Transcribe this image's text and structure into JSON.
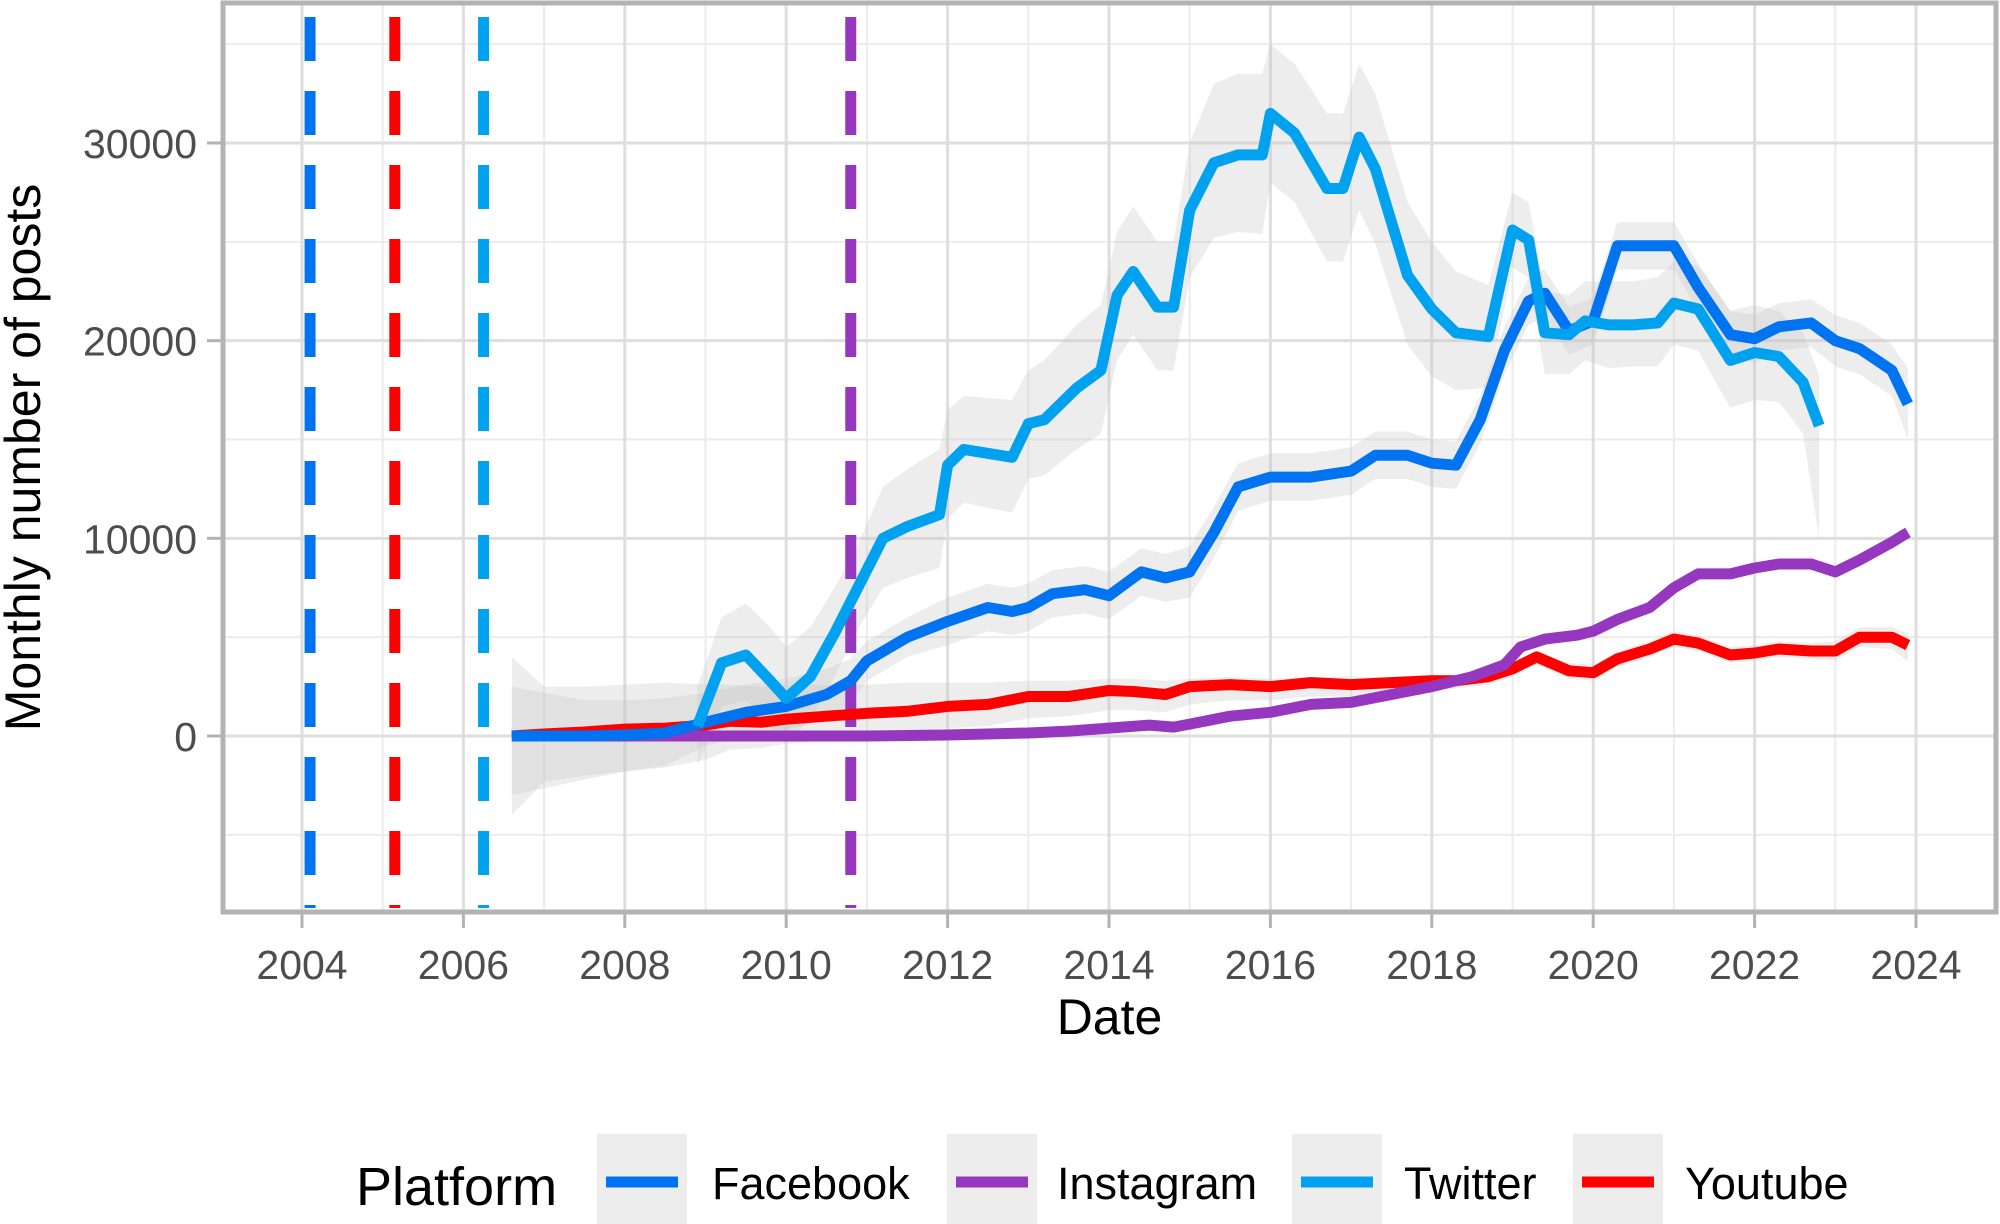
{
  "chart_data": {
    "type": "line",
    "title": "",
    "xlabel": "Date",
    "ylabel": "Monthly number of posts",
    "xlim": [
      2003.0,
      2025.0
    ],
    "ylim": [
      -9000,
      37000
    ],
    "x_ticks": [
      2004,
      2006,
      2008,
      2010,
      2012,
      2014,
      2016,
      2018,
      2020,
      2022,
      2024
    ],
    "x_tick_labels": [
      "2004",
      "2006",
      "2008",
      "2010",
      "2012",
      "2014",
      "2016",
      "2018",
      "2020",
      "2022",
      "2024"
    ],
    "y_ticks": [
      0,
      10000,
      20000,
      30000
    ],
    "y_tick_labels": [
      "0",
      "10000",
      "20000",
      "30000"
    ],
    "y_minor_gridlines": [
      -5000,
      5000,
      15000,
      25000,
      35000
    ],
    "x_minor_gridlines": [
      2005,
      2007,
      2009,
      2011,
      2013,
      2015,
      2017,
      2019,
      2021,
      2023
    ],
    "grid": true,
    "legend": {
      "title": "Platform",
      "position": "bottom",
      "entries": [
        {
          "label": "Facebook",
          "color": "#0073f0"
        },
        {
          "label": "Instagram",
          "color": "#9538bf"
        },
        {
          "label": "Twitter",
          "color": "#00a2f0"
        },
        {
          "label": "Youtube",
          "color": "#ff0000"
        }
      ]
    },
    "launch_lines": [
      {
        "platform": "Facebook",
        "x": 2004.1,
        "color": "#0073f0",
        "style": "dashed"
      },
      {
        "platform": "Youtube",
        "x": 2005.15,
        "color": "#ff0000",
        "style": "dashed"
      },
      {
        "platform": "Twitter",
        "x": 2006.25,
        "color": "#00a2f0",
        "style": "dashed"
      },
      {
        "platform": "Instagram",
        "x": 2010.8,
        "color": "#9538bf",
        "style": "dashed"
      }
    ],
    "series": [
      {
        "name": "Youtube",
        "color": "#ff0000",
        "x": [
          2006.6,
          2007.0,
          2007.5,
          2008.0,
          2008.5,
          2009.0,
          2009.3,
          2009.7,
          2010.0,
          2010.5,
          2011.0,
          2011.5,
          2012.0,
          2012.5,
          2013.0,
          2013.5,
          2014.0,
          2014.3,
          2014.7,
          2015.0,
          2015.5,
          2016.0,
          2016.5,
          2017.0,
          2017.5,
          2018.0,
          2018.3,
          2018.7,
          2019.0,
          2019.3,
          2019.7,
          2020.0,
          2020.3,
          2020.7,
          2021.0,
          2021.3,
          2021.7,
          2022.0,
          2022.3,
          2022.7,
          2023.0,
          2023.3,
          2023.7,
          2023.9
        ],
        "values": [
          0,
          100,
          200,
          350,
          400,
          550,
          750,
          700,
          850,
          1000,
          1150,
          1250,
          1500,
          1600,
          2000,
          2000,
          2300,
          2250,
          2100,
          2500,
          2600,
          2500,
          2700,
          2600,
          2700,
          2800,
          2800,
          3000,
          3400,
          4000,
          3300,
          3200,
          3900,
          4400,
          4900,
          4700,
          4100,
          4200,
          4400,
          4300,
          4300,
          5000,
          5000,
          4600
        ],
        "band_upper": [
          4000,
          2500,
          2500,
          2600,
          2700,
          2600,
          2600,
          2500,
          2600,
          2600,
          2600,
          2700,
          2700,
          2700,
          2800,
          2800,
          2900,
          2900,
          2800,
          2900,
          3000,
          2900,
          3000,
          3000,
          3000,
          3100,
          3100,
          3300,
          3700,
          4300,
          3700,
          3600,
          4300,
          4800,
          5300,
          5100,
          4500,
          4600,
          4800,
          4700,
          4800,
          5500,
          5500,
          5200
        ],
        "band_lower": [
          -4000,
          -2300,
          -2000,
          -1800,
          -1600,
          -1200,
          -700,
          -600,
          -400,
          -200,
          0,
          100,
          400,
          500,
          900,
          1000,
          1300,
          1300,
          1200,
          1600,
          1800,
          1800,
          2000,
          2000,
          2100,
          2300,
          2400,
          2600,
          3000,
          3600,
          2900,
          2800,
          3500,
          4000,
          4500,
          4300,
          3700,
          3800,
          4000,
          3900,
          3800,
          4500,
          4400,
          3800
        ]
      },
      {
        "name": "Instagram",
        "color": "#9538bf",
        "x": [
          2006.6,
          2008.0,
          2009.0,
          2010.0,
          2011.0,
          2012.0,
          2013.0,
          2013.5,
          2014.0,
          2014.5,
          2014.8,
          2015.0,
          2015.5,
          2016.0,
          2016.5,
          2017.0,
          2017.5,
          2018.0,
          2018.5,
          2018.9,
          2019.1,
          2019.4,
          2019.8,
          2020.0,
          2020.3,
          2020.7,
          2021.0,
          2021.3,
          2021.7,
          2022.0,
          2022.3,
          2022.7,
          2023.0,
          2023.3,
          2023.7,
          2023.9
        ],
        "values": [
          0,
          0,
          0,
          0,
          0,
          50,
          150,
          250,
          400,
          550,
          450,
          600,
          1000,
          1200,
          1600,
          1700,
          2100,
          2500,
          3000,
          3600,
          4500,
          4900,
          5100,
          5300,
          5900,
          6500,
          7500,
          8200,
          8200,
          8500,
          8700,
          8700,
          8300,
          8900,
          9800,
          10300
        ],
        "band_upper": [
          300,
          200,
          200,
          200,
          200,
          250,
          350,
          450,
          600,
          750,
          650,
          800,
          1200,
          1400,
          1800,
          1900,
          2300,
          2700,
          3200,
          3800,
          4700,
          5100,
          5300,
          5500,
          6100,
          6700,
          7700,
          8400,
          8400,
          8700,
          8900,
          8900,
          8500,
          9100,
          10000,
          10600
        ],
        "band_lower": [
          -300,
          -200,
          -200,
          -200,
          -200,
          -150,
          -50,
          50,
          200,
          350,
          250,
          400,
          800,
          1000,
          1400,
          1500,
          1900,
          2300,
          2800,
          3400,
          4300,
          4700,
          4900,
          5100,
          5700,
          6300,
          7300,
          8000,
          8000,
          8300,
          8500,
          8500,
          8100,
          8700,
          9600,
          10000
        ]
      },
      {
        "name": "Facebook",
        "color": "#0073f0",
        "x": [
          2006.6,
          2007.5,
          2008.0,
          2008.5,
          2009.0,
          2009.5,
          2010.0,
          2010.5,
          2010.8,
          2011.0,
          2011.5,
          2012.0,
          2012.5,
          2012.8,
          2013.0,
          2013.3,
          2013.7,
          2014.0,
          2014.4,
          2014.7,
          2015.0,
          2015.3,
          2015.6,
          2016.0,
          2016.5,
          2017.0,
          2017.3,
          2017.7,
          2018.0,
          2018.3,
          2018.6,
          2018.9,
          2019.2,
          2019.4,
          2019.7,
          2020.0,
          2020.3,
          2020.7,
          2021.0,
          2021.3,
          2021.7,
          2022.0,
          2022.3,
          2022.7,
          2023.0,
          2023.3,
          2023.7,
          2023.9
        ],
        "values": [
          0,
          0,
          50,
          150,
          700,
          1200,
          1500,
          2100,
          2800,
          3800,
          5000,
          5800,
          6500,
          6300,
          6500,
          7200,
          7400,
          7100,
          8300,
          8000,
          8300,
          10300,
          12600,
          13100,
          13100,
          13400,
          14200,
          14200,
          13800,
          13700,
          16000,
          19500,
          22000,
          22400,
          20500,
          21000,
          24800,
          24800,
          24800,
          22700,
          20300,
          20100,
          20700,
          20900,
          20000,
          19600,
          18500,
          16800
        ],
        "band_upper": [
          2500,
          1800,
          1800,
          1900,
          2200,
          2600,
          2900,
          3400,
          3900,
          4800,
          6000,
          7000,
          7700,
          7500,
          7700,
          8400,
          8600,
          8300,
          9500,
          9200,
          9600,
          11600,
          13800,
          14300,
          14300,
          14600,
          15400,
          15400,
          15000,
          14900,
          17200,
          20700,
          23200,
          23600,
          21700,
          22200,
          26000,
          26000,
          26000,
          23900,
          21500,
          21300,
          21900,
          22100,
          21300,
          20900,
          19800,
          18600
        ],
        "band_lower": [
          -3000,
          -2200,
          -1800,
          -1500,
          -500,
          0,
          300,
          900,
          1700,
          2800,
          4000,
          4600,
          5300,
          5100,
          5300,
          6000,
          6200,
          5900,
          7100,
          6800,
          7000,
          9000,
          11400,
          11900,
          11900,
          12200,
          13000,
          13000,
          12600,
          12500,
          14800,
          18300,
          20800,
          21200,
          19300,
          19800,
          23600,
          23600,
          23600,
          21500,
          19100,
          18900,
          19500,
          19700,
          18700,
          18300,
          17200,
          15000
        ]
      },
      {
        "name": "Twitter",
        "color": "#00a2f0",
        "x": [
          2008.9,
          2009.2,
          2009.5,
          2009.8,
          2010.0,
          2010.3,
          2010.6,
          2010.9,
          2011.2,
          2011.5,
          2011.9,
          2012.0,
          2012.2,
          2012.8,
          2013.0,
          2013.2,
          2013.6,
          2013.9,
          2014.1,
          2014.3,
          2014.6,
          2014.8,
          2015.0,
          2015.3,
          2015.6,
          2015.9,
          2016.0,
          2016.3,
          2016.7,
          2016.9,
          2017.1,
          2017.3,
          2017.7,
          2018.0,
          2018.3,
          2018.7,
          2019.0,
          2019.2,
          2019.4,
          2019.7,
          2019.9,
          2020.2,
          2020.5,
          2020.8,
          2021.0,
          2021.3,
          2021.7,
          2022.0,
          2022.3,
          2022.6,
          2022.8
        ],
        "values": [
          500,
          3700,
          4100,
          2800,
          1900,
          3000,
          5200,
          7600,
          10000,
          10600,
          11200,
          13700,
          14500,
          14100,
          15800,
          16000,
          17600,
          18500,
          22300,
          23500,
          21700,
          21700,
          26600,
          29000,
          29400,
          29400,
          31500,
          30500,
          27700,
          27700,
          30300,
          28700,
          23300,
          21600,
          20400,
          20200,
          25600,
          25100,
          20400,
          20300,
          21000,
          20800,
          20800,
          20900,
          21900,
          21600,
          19000,
          19400,
          19200,
          17900,
          15700
        ],
        "band_upper": [
          2500,
          6000,
          6700,
          5500,
          4500,
          5500,
          7500,
          9800,
          12600,
          13500,
          14500,
          16500,
          17200,
          17000,
          18500,
          19000,
          20800,
          21800,
          25500,
          26800,
          25000,
          25000,
          30000,
          33000,
          33500,
          33500,
          35000,
          34000,
          31500,
          31500,
          34000,
          32500,
          27000,
          25000,
          23500,
          22800,
          27500,
          27000,
          22500,
          22300,
          23000,
          23000,
          23000,
          23200,
          24000,
          23800,
          21500,
          21800,
          21500,
          20400,
          18200
        ],
        "band_lower": [
          -1500,
          1500,
          1800,
          500,
          -300,
          800,
          3000,
          5500,
          7500,
          8000,
          8500,
          11000,
          11800,
          11300,
          13000,
          13200,
          14500,
          15300,
          19000,
          20300,
          18500,
          18500,
          23200,
          25200,
          25500,
          25400,
          28000,
          27000,
          24000,
          24000,
          26600,
          24900,
          19800,
          18200,
          17500,
          17600,
          23700,
          23200,
          18300,
          18300,
          19000,
          18600,
          18700,
          18700,
          19800,
          19500,
          16600,
          17000,
          16900,
          15300,
          10000
        ]
      }
    ]
  }
}
